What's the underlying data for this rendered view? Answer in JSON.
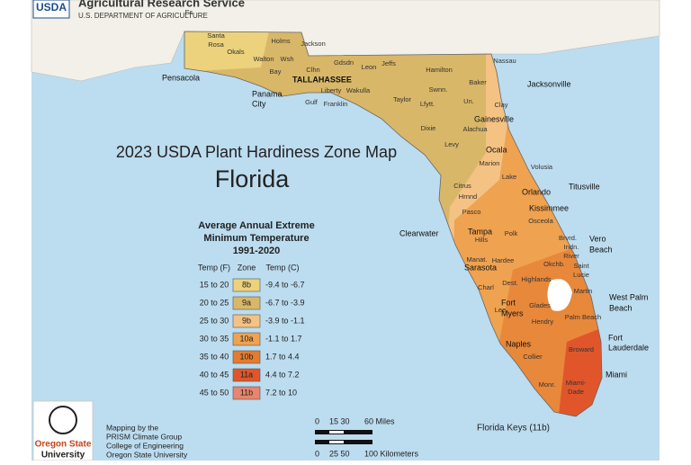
{
  "header": {
    "logo": "USDA",
    "agency": "Agricultural Research Service",
    "department": "U.S. DEPARTMENT OF AGRICULTURE"
  },
  "title": "2023 USDA Plant Hardiness Zone Map",
  "state": "Florida",
  "legend": {
    "title": [
      "Average Annual Extreme",
      "Minimum Temperature",
      "1991-2020"
    ],
    "columns": [
      "Temp (F)",
      "Zone",
      "Temp (C)"
    ],
    "rows": [
      {
        "temp_f": "15 to 20",
        "zone": "8b",
        "temp_c": "-9.4 to -6.7",
        "color": "#ecd27c"
      },
      {
        "temp_f": "20 to 25",
        "zone": "9a",
        "temp_c": "-6.7 to -3.9",
        "color": "#d9b768"
      },
      {
        "temp_f": "25 to 30",
        "zone": "9b",
        "temp_c": "-3.9 to -1.1",
        "color": "#f4c283"
      },
      {
        "temp_f": "30 to 35",
        "zone": "10a",
        "temp_c": "-1.1 to 1.7",
        "color": "#efa24f"
      },
      {
        "temp_f": "35 to 40",
        "zone": "10b",
        "temp_c": "1.7 to 4.4",
        "color": "#e57b2e"
      },
      {
        "temp_f": "40 to 45",
        "zone": "11a",
        "temp_c": "4.4 to 7.2",
        "color": "#e0562a"
      },
      {
        "temp_f": "45 to 50",
        "zone": "11b",
        "temp_c": "7.2 to 10",
        "color": "#e9846e"
      }
    ]
  },
  "cities": [
    "Pensacola",
    "Panama",
    "City",
    "TALLAHASSEE",
    "Jacksonville",
    "Gainesville",
    "Ocala",
    "Orlando",
    "Kissimmee",
    "Titusville",
    "Clearwater",
    "Tampa",
    "Sarasota",
    "Vero",
    "Beach",
    "Fort",
    "Myers",
    "West Palm",
    "Beach",
    "Naples",
    "Fort",
    "Lauderdale",
    "Miami"
  ],
  "counties": [
    "Es",
    "Santa",
    "Rosa",
    "Okals",
    "Holms",
    "Jackson",
    "Walton",
    "Wsh",
    "Bay",
    "Clhn",
    "Gdsdn",
    "Leon",
    "Jeffs",
    "Hamilton",
    "Baker",
    "Nassau",
    "Liberty",
    "Wakulla",
    "Gulf",
    "Franklin",
    "Taylor",
    "Lfytt.",
    "Swnn.",
    "Un.",
    "Clay",
    "Dixie",
    "Alachua",
    "Levy",
    "Marion",
    "Citrus",
    "Lake",
    "Volusia",
    "Hrnnd",
    "Pasco",
    "Osceola",
    "Polk",
    "Hills",
    "Manat.",
    "Hardee",
    "Brvrd.",
    "Indn.",
    "River",
    "Okchb.",
    "Highlands",
    "Dest.",
    "Saint",
    "Lucie",
    "Martin",
    "Glades",
    "Charl",
    "Lee",
    "Hendry",
    "Palm Beach",
    "Collier",
    "Broward",
    "Monr.",
    "Miami-",
    "Dade"
  ],
  "credits": [
    "Mapping by the",
    "PRISM Climate Group",
    "College of Engineering",
    "Oregon State University"
  ],
  "university": [
    "Oregon State",
    "University"
  ],
  "scale": {
    "miles": [
      "0",
      "15 30",
      "60 Miles"
    ],
    "km": [
      "0",
      "25 50",
      "100 Kilometers"
    ]
  },
  "keys_note": "Florida Keys (11b)"
}
